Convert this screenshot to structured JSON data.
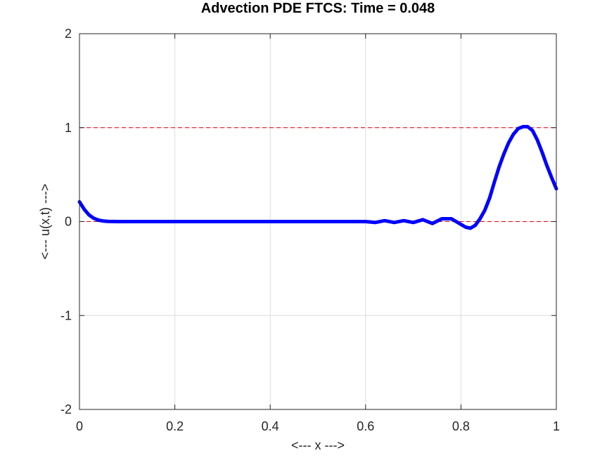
{
  "chart_data": {
    "type": "line",
    "title": "Advection PDE FTCS: Time = 0.048",
    "xlabel": "<--- x --->",
    "ylabel": "<--- u(x,t) --->",
    "xlim": [
      0,
      1
    ],
    "ylim": [
      -2,
      2
    ],
    "xticks": [
      0,
      0.2,
      0.4,
      0.6,
      0.8,
      1
    ],
    "xtick_labels": [
      "0",
      "0.2",
      "0.4",
      "0.6",
      "0.8",
      "1"
    ],
    "yticks": [
      -2,
      -1,
      0,
      1,
      2
    ],
    "ytick_labels": [
      "-2",
      "-1",
      "0",
      "1",
      "2"
    ],
    "grid": true,
    "reference_lines": [
      {
        "y": 1,
        "color": "#e8000b",
        "style": "dashed"
      },
      {
        "y": 0,
        "color": "#e8000b",
        "style": "dashed"
      }
    ],
    "series": [
      {
        "color": "#0000ff",
        "x": [
          0,
          0.01,
          0.02,
          0.03,
          0.04,
          0.05,
          0.06,
          0.08,
          0.1,
          0.2,
          0.3,
          0.4,
          0.5,
          0.55,
          0.6,
          0.62,
          0.64,
          0.66,
          0.68,
          0.7,
          0.72,
          0.74,
          0.76,
          0.78,
          0.8,
          0.81,
          0.82,
          0.83,
          0.84,
          0.85,
          0.86,
          0.87,
          0.88,
          0.89,
          0.9,
          0.91,
          0.92,
          0.93,
          0.94,
          0.95,
          0.96,
          0.97,
          0.98,
          0.99,
          1.0
        ],
        "y": [
          0.21,
          0.13,
          0.07,
          0.035,
          0.015,
          0.006,
          0.002,
          0.0,
          0.0,
          0.0,
          0.0,
          0.0,
          0.0,
          0.0,
          0.0,
          -0.01,
          0.01,
          -0.01,
          0.01,
          -0.01,
          0.02,
          -0.02,
          0.03,
          0.03,
          -0.03,
          -0.06,
          -0.07,
          -0.04,
          0.03,
          0.12,
          0.25,
          0.42,
          0.58,
          0.72,
          0.84,
          0.93,
          0.99,
          1.01,
          1.01,
          0.97,
          0.87,
          0.74,
          0.6,
          0.47,
          0.35
        ]
      }
    ]
  }
}
